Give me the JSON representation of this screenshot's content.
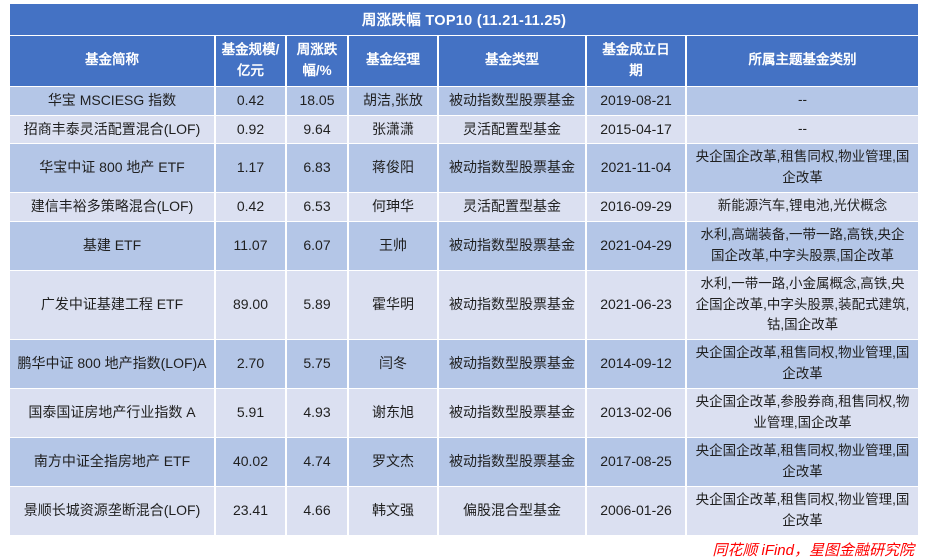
{
  "chart_data": {
    "type": "table",
    "title": "周涨跌幅 TOP10 (11.21-11.25)",
    "columns": [
      "基金简称",
      "基金规模/亿元",
      "周涨跌幅/%",
      "基金经理",
      "基金类型",
      "基金成立日期",
      "所属主题基金类别"
    ],
    "rows": [
      {
        "name": "华宝 MSCIESG 指数",
        "size": "0.42",
        "change": "18.05",
        "manager": "胡洁,张放",
        "type": "被动指数型股票基金",
        "date": "2019-08-21",
        "theme": "--"
      },
      {
        "name": "招商丰泰灵活配置混合(LOF)",
        "size": "0.92",
        "change": "9.64",
        "manager": "张潇潇",
        "type": "灵活配置型基金",
        "date": "2015-04-17",
        "theme": "--"
      },
      {
        "name": "华宝中证 800 地产 ETF",
        "size": "1.17",
        "change": "6.83",
        "manager": "蒋俊阳",
        "type": "被动指数型股票基金",
        "date": "2021-11-04",
        "theme": "央企国企改革,租售同权,物业管理,国企改革"
      },
      {
        "name": "建信丰裕多策略混合(LOF)",
        "size": "0.42",
        "change": "6.53",
        "manager": "何珅华",
        "type": "灵活配置型基金",
        "date": "2016-09-29",
        "theme": "新能源汽车,锂电池,光伏概念"
      },
      {
        "name": "基建 ETF",
        "size": "11.07",
        "change": "6.07",
        "manager": "王帅",
        "type": "被动指数型股票基金",
        "date": "2021-04-29",
        "theme": "水利,高端装备,一带一路,高铁,央企国企改革,中字头股票,国企改革"
      },
      {
        "name": "广发中证基建工程 ETF",
        "size": "89.00",
        "change": "5.89",
        "manager": "霍华明",
        "type": "被动指数型股票基金",
        "date": "2021-06-23",
        "theme": "水利,一带一路,小金属概念,高铁,央企国企改革,中字头股票,装配式建筑,钴,国企改革"
      },
      {
        "name": "鹏华中证 800 地产指数(LOF)A",
        "size": "2.70",
        "change": "5.75",
        "manager": "闫冬",
        "type": "被动指数型股票基金",
        "date": "2014-09-12",
        "theme": "央企国企改革,租售同权,物业管理,国企改革"
      },
      {
        "name": "国泰国证房地产行业指数 A",
        "size": "5.91",
        "change": "4.93",
        "manager": "谢东旭",
        "type": "被动指数型股票基金",
        "date": "2013-02-06",
        "theme": "央企国企改革,参股券商,租售同权,物业管理,国企改革"
      },
      {
        "name": "南方中证全指房地产 ETF",
        "size": "40.02",
        "change": "4.74",
        "manager": "罗文杰",
        "type": "被动指数型股票基金",
        "date": "2017-08-25",
        "theme": "央企国企改革,租售同权,物业管理,国企改革"
      },
      {
        "name": "景顺长城资源垄断混合(LOF)",
        "size": "23.41",
        "change": "4.66",
        "manager": "韩文强",
        "type": "偏股混合型基金",
        "date": "2006-01-26",
        "theme": "央企国企改革,租售同权,物业管理,国企改革"
      }
    ]
  },
  "footer": {
    "source": "同花顺 iFind，星图金融研究院"
  },
  "colors": {
    "header_bg": "#4472C4",
    "title_text": "#FFFFFF",
    "row_odd": "#B4C6E7",
    "row_even": "#DBE0F1",
    "body_text": "#1F1F1F",
    "source_text": "#FF0000"
  }
}
